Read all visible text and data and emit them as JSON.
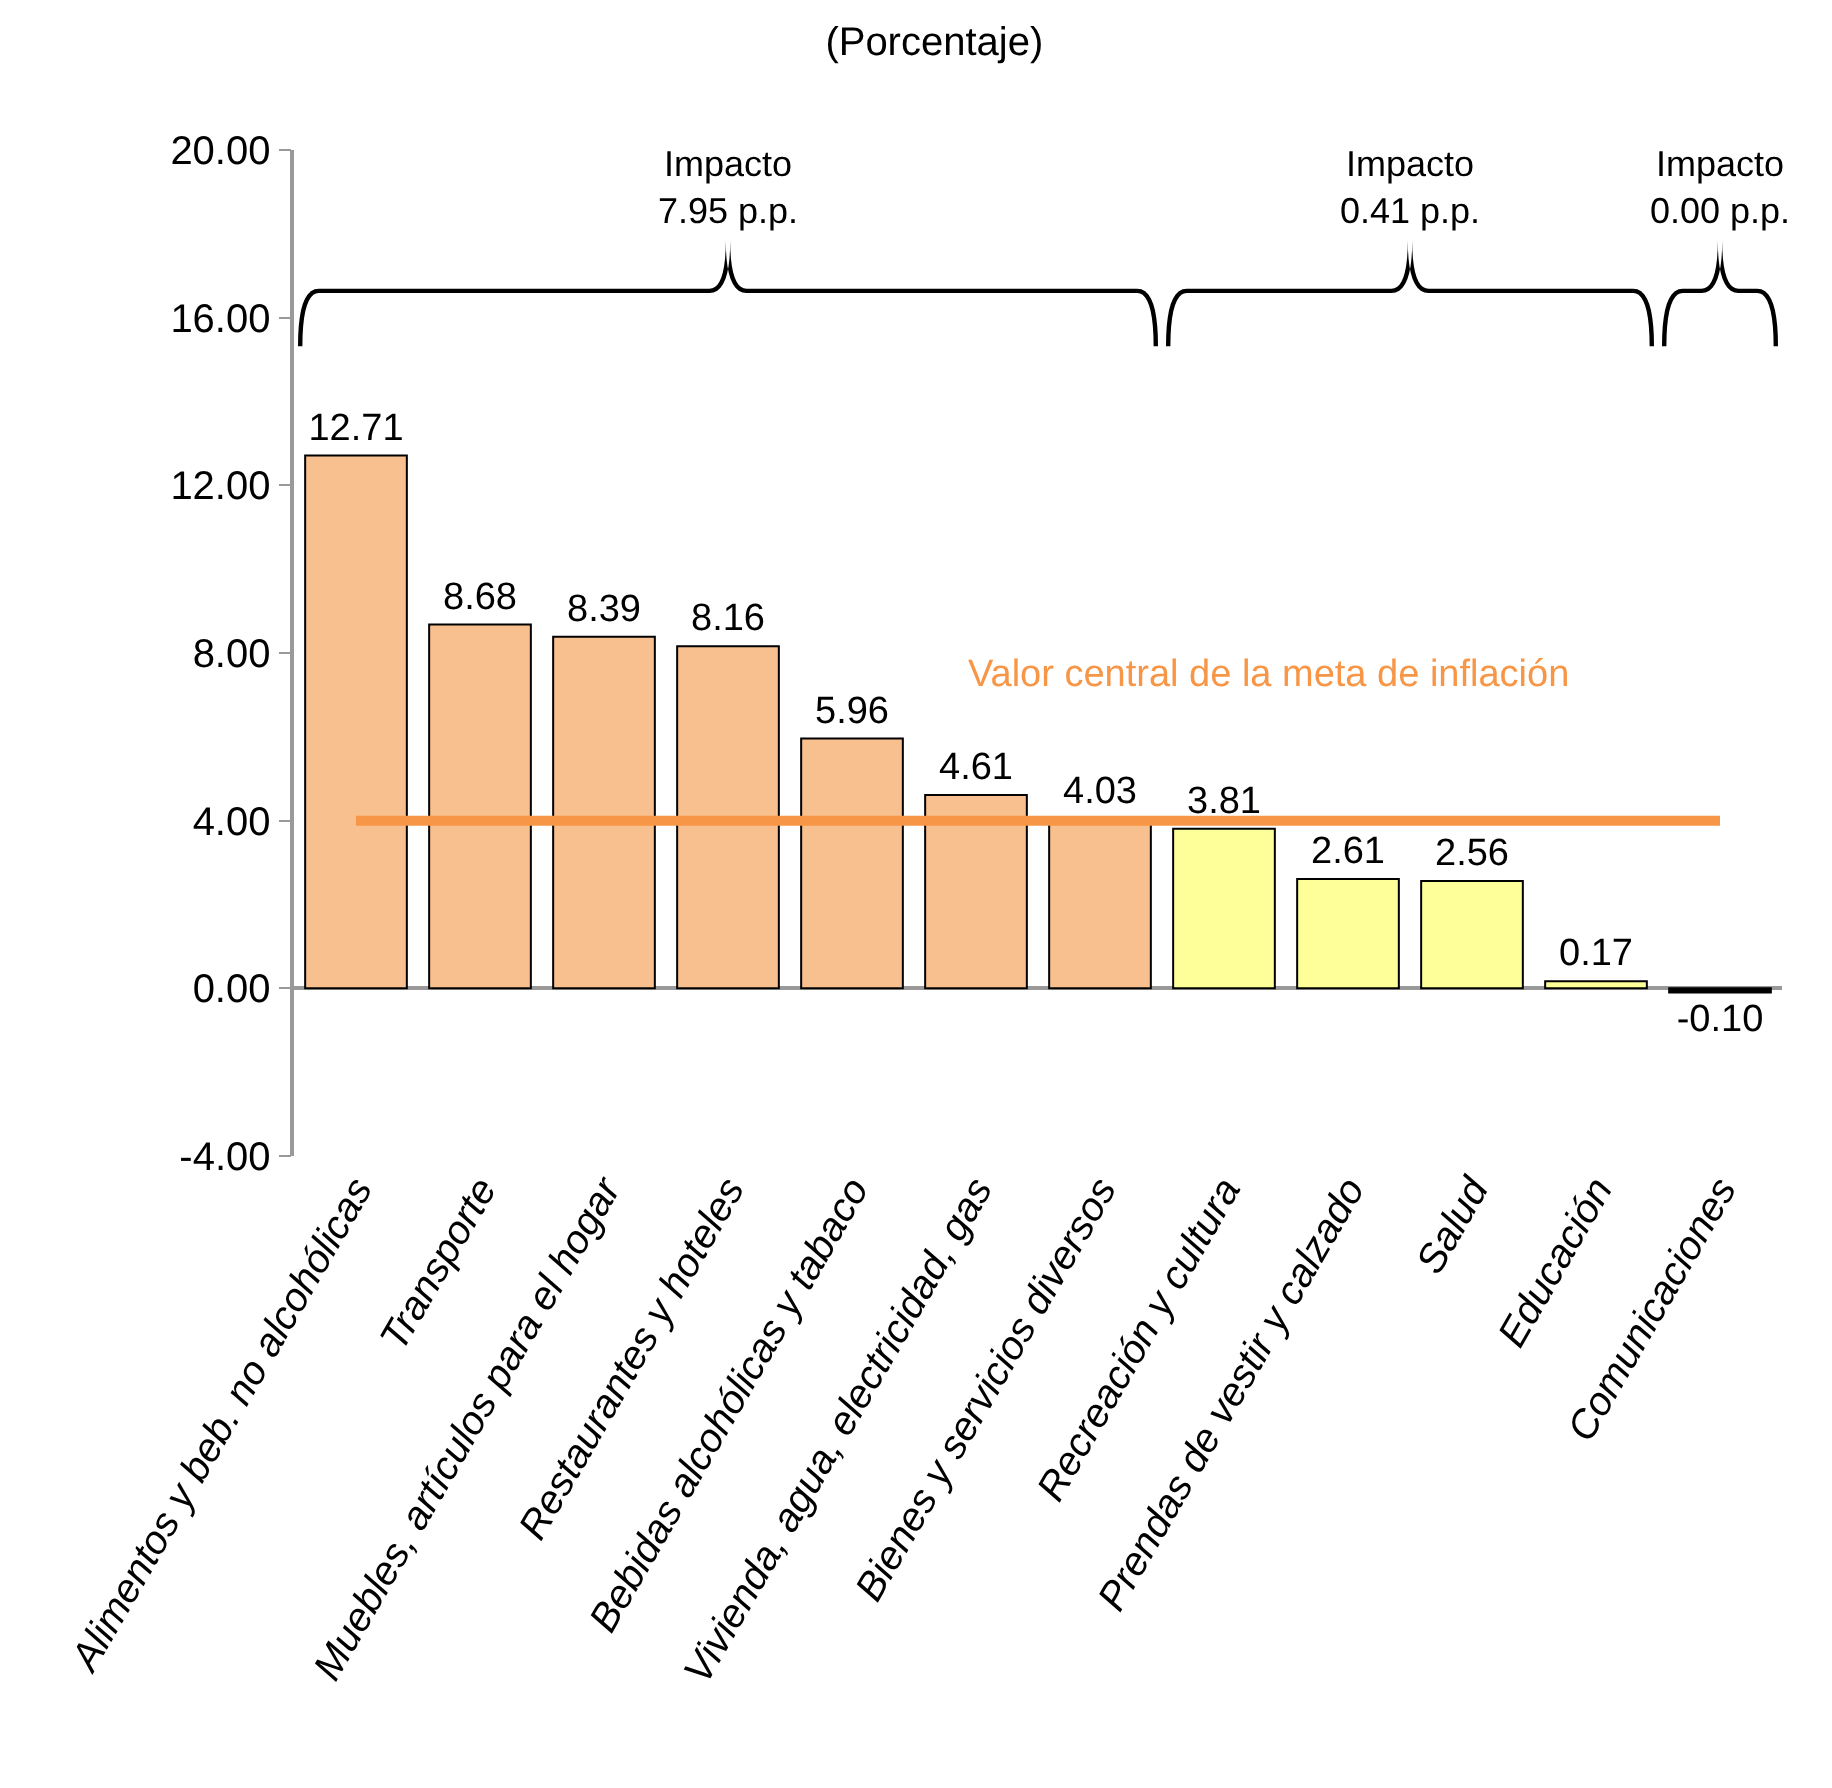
{
  "chart_data": {
    "type": "bar",
    "title": "(Porcentaje)",
    "categories": [
      "Alimentos y beb. no alcohólicas",
      "Transporte",
      "Muebles, artículos para el hogar",
      "Restaurantes y hoteles",
      "Bebidas alcohólicas y tabaco",
      "Vivienda, agua, electricidad, gas",
      "Bienes y servicios diversos",
      "Recreación y cultura",
      "Prendas de vestir y calzado",
      "Salud",
      "Educación",
      "Comunicaciones"
    ],
    "values": [
      12.71,
      8.68,
      8.39,
      8.16,
      5.96,
      4.61,
      4.03,
      3.81,
      2.61,
      2.56,
      0.17,
      -0.1
    ],
    "value_labels": [
      "12.71",
      "8.68",
      "8.39",
      "8.16",
      "5.96",
      "4.61",
      "4.03",
      "3.81",
      "2.61",
      "2.56",
      "0.17",
      "-0.10"
    ],
    "colors": [
      "#f9c08f",
      "#f9c08f",
      "#f9c08f",
      "#f9c08f",
      "#f9c08f",
      "#f9c08f",
      "#f9c08f",
      "#ffff99",
      "#ffff99",
      "#ffff99",
      "#ffff99",
      "#000000"
    ],
    "ylim": [
      -4,
      20
    ],
    "yticks": [
      {
        "value": -4,
        "label": "-4.00"
      },
      {
        "value": 0,
        "label": "0.00"
      },
      {
        "value": 4,
        "label": "4.00"
      },
      {
        "value": 8,
        "label": "8.00"
      },
      {
        "value": 12,
        "label": "12.00"
      },
      {
        "value": 16,
        "label": "16.00"
      },
      {
        "value": 20,
        "label": "20.00"
      }
    ],
    "ref_lines": [
      {
        "axis": "y",
        "value": 4,
        "label": "Valor central de la meta de inflación",
        "color": "#f79646",
        "line_style": "solid"
      }
    ],
    "annotations": [
      "Impacto\n7.95 p.p.",
      "Impacto\n0.41 p.p.",
      "Impacto\n0.00 p.p."
    ]
  }
}
